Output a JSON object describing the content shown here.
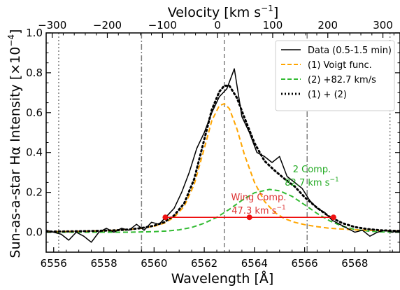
{
  "chart_data": {
    "type": "line",
    "xlabel": "Wavelength [Å]",
    "ylabel": "Sun-as-a-star Hα Intensity [×10",
    "ylabel_exponent": "−4",
    "ylabel_close": "]",
    "top_axis_label": "Velocity [km s",
    "top_axis_label_exponent": "−1",
    "top_axis_label_close": "]",
    "xlim": [
      6555.7,
      6569.8
    ],
    "ylim": [
      -0.1,
      1.0
    ],
    "top_xlim": [
      -311,
      331
    ],
    "x_ticks": [
      6556,
      6558,
      6560,
      6562,
      6564,
      6566,
      6568
    ],
    "x_tick_labels": [
      "6556",
      "6558",
      "6560",
      "6562",
      "6564",
      "6566",
      "6568"
    ],
    "y_ticks": [
      0.0,
      0.2,
      0.4,
      0.6,
      0.8,
      1.0
    ],
    "y_tick_labels": [
      "0.0",
      "0.2",
      "0.4",
      "0.6",
      "0.8",
      "1.0"
    ],
    "top_ticks": [
      -300,
      -200,
      -100,
      0,
      100,
      200,
      300
    ],
    "top_tick_labels": [
      "−300",
      "−200",
      "−100",
      "0",
      "100",
      "200",
      "300"
    ],
    "legend": {
      "position": "top-right",
      "entries": [
        {
          "label": "Data (0.5-1.5 min)",
          "color": "#000000",
          "style": "solid"
        },
        {
          "label": "(1) Voigt func.",
          "color": "#ffa500",
          "style": "dashed"
        },
        {
          "label": "(2) +82.7 km/s",
          "color": "#33bb33",
          "style": "dashed"
        },
        {
          "label": "(1) + (2)",
          "color": "#000000",
          "style": "dotted"
        }
      ]
    },
    "series": [
      {
        "name": "Data (0.5-1.5 min)",
        "color": "#000000",
        "x": [
          6555.7,
          6556.0,
          6556.3,
          6556.6,
          6556.9,
          6557.2,
          6557.5,
          6557.8,
          6558.1,
          6558.4,
          6558.7,
          6559.0,
          6559.3,
          6559.6,
          6559.9,
          6560.2,
          6560.5,
          6560.8,
          6561.1,
          6561.4,
          6561.7,
          6562.0,
          6562.3,
          6562.6,
          6562.9,
          6563.2,
          6563.5,
          6563.8,
          6564.1,
          6564.4,
          6564.7,
          6565.0,
          6565.3,
          6565.6,
          6565.9,
          6566.2,
          6566.5,
          6566.8,
          6567.1,
          6567.4,
          6567.7,
          6568.0,
          6568.3,
          6568.6,
          6568.9,
          6569.2,
          6569.5,
          6569.8
        ],
        "y": [
          0.01,
          0.0,
          -0.01,
          -0.04,
          0.0,
          -0.02,
          -0.05,
          0.0,
          0.02,
          0.0,
          0.02,
          0.01,
          0.04,
          0.01,
          0.05,
          0.04,
          0.08,
          0.12,
          0.2,
          0.3,
          0.42,
          0.5,
          0.6,
          0.68,
          0.72,
          0.82,
          0.58,
          0.5,
          0.4,
          0.38,
          0.35,
          0.38,
          0.28,
          0.25,
          0.22,
          0.16,
          0.12,
          0.1,
          0.06,
          0.04,
          0.02,
          0.0,
          0.01,
          -0.02,
          0.0,
          0.01,
          0.0,
          0.01
        ]
      },
      {
        "name": "(1) Voigt func.",
        "color": "#ffa500",
        "x": [
          6555.7,
          6556.5,
          6557.5,
          6558.5,
          6559.0,
          6559.5,
          6560.0,
          6560.4,
          6560.8,
          6561.2,
          6561.6,
          6562.0,
          6562.3,
          6562.6,
          6562.8,
          6563.0,
          6563.3,
          6563.6,
          6564.0,
          6564.4,
          6564.8,
          6565.2,
          6565.6,
          6566.0,
          6566.5,
          6567.0,
          6567.5,
          6568.0,
          6568.5,
          6569.0,
          6569.8
        ],
        "y": [
          0.003,
          0.004,
          0.006,
          0.01,
          0.014,
          0.02,
          0.03,
          0.045,
          0.075,
          0.13,
          0.24,
          0.42,
          0.56,
          0.635,
          0.645,
          0.62,
          0.52,
          0.39,
          0.25,
          0.155,
          0.1,
          0.068,
          0.05,
          0.038,
          0.028,
          0.02,
          0.016,
          0.012,
          0.01,
          0.008,
          0.006
        ]
      },
      {
        "name": "(2) +82.7 km/s",
        "color": "#33bb33",
        "x": [
          6555.7,
          6558.0,
          6559.0,
          6560.0,
          6560.5,
          6561.0,
          6561.5,
          6562.0,
          6562.5,
          6563.0,
          6563.5,
          6564.0,
          6564.6,
          6565.0,
          6565.5,
          6566.0,
          6566.5,
          6567.0,
          6567.5,
          6568.0,
          6568.5,
          6569.0,
          6569.8
        ],
        "y": [
          0.0,
          0.0,
          0.0,
          0.003,
          0.006,
          0.012,
          0.024,
          0.045,
          0.075,
          0.115,
          0.16,
          0.198,
          0.215,
          0.208,
          0.18,
          0.138,
          0.094,
          0.057,
          0.03,
          0.014,
          0.006,
          0.002,
          0.0
        ]
      },
      {
        "name": "(1) + (2)",
        "color": "#000000",
        "x": [
          6555.7,
          6556.5,
          6557.5,
          6558.5,
          6559.0,
          6559.5,
          6560.0,
          6560.4,
          6560.8,
          6561.2,
          6561.6,
          6562.0,
          6562.3,
          6562.6,
          6562.8,
          6563.0,
          6563.3,
          6563.6,
          6564.0,
          6564.4,
          6564.8,
          6565.2,
          6565.6,
          6566.0,
          6566.5,
          6567.0,
          6567.5,
          6568.0,
          6568.5,
          6569.0,
          6569.8
        ],
        "y": [
          0.003,
          0.004,
          0.006,
          0.01,
          0.014,
          0.021,
          0.033,
          0.05,
          0.084,
          0.145,
          0.267,
          0.465,
          0.615,
          0.705,
          0.735,
          0.735,
          0.675,
          0.575,
          0.448,
          0.358,
          0.31,
          0.268,
          0.23,
          0.176,
          0.122,
          0.077,
          0.046,
          0.026,
          0.016,
          0.01,
          0.006
        ]
      }
    ],
    "vertical_lines": [
      {
        "x": 6556.2,
        "style": "dotted",
        "color": "#808080"
      },
      {
        "x": 6559.5,
        "style": "dashdot",
        "color": "#808080"
      },
      {
        "x": 6562.8,
        "style": "dashed",
        "color": "#808080"
      },
      {
        "x": 6566.1,
        "style": "dashdot",
        "color": "#808080"
      },
      {
        "x": 6569.4,
        "style": "dotted",
        "color": "#808080"
      }
    ],
    "wing_segment": {
      "x_start": 6560.45,
      "x_end": 6567.15,
      "y": 0.075,
      "x_mid": 6563.8,
      "color": "#ee1111"
    },
    "annotations": [
      {
        "text_lines": [
          "Wing Comp.",
          "47.3 km s"
        ],
        "superscript": "−1",
        "color": "#dd3333",
        "x": 6563.8,
        "y": 0.1
      },
      {
        "text_lines": [
          "2 Comp.",
          "82.7 km s"
        ],
        "superscript": "−1",
        "color": "#22aa22",
        "x": 6566.25,
        "y": 0.24
      }
    ],
    "grid": false
  }
}
